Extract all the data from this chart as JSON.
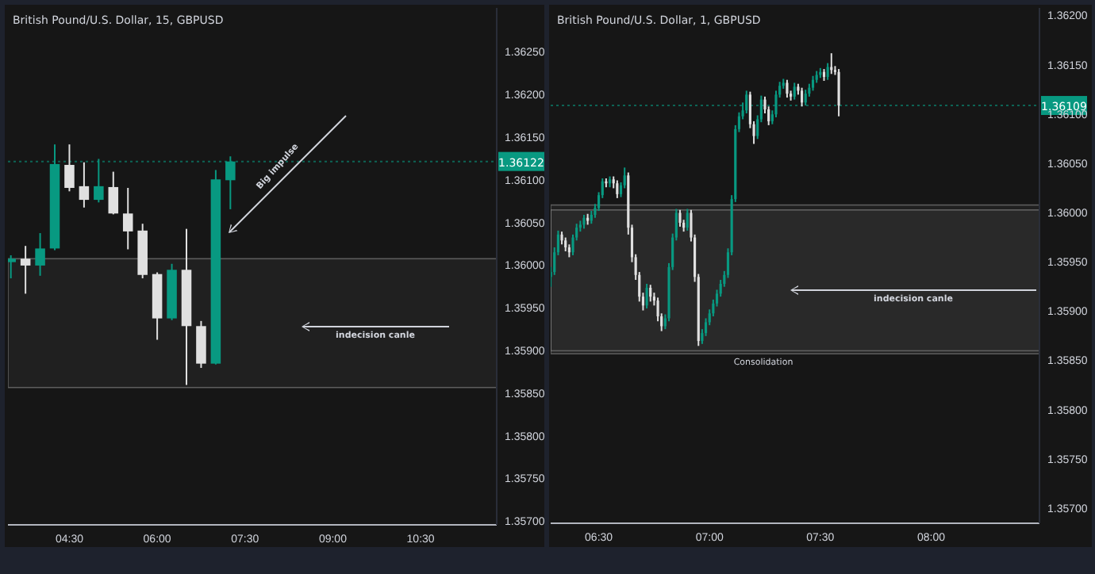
{
  "chart_data": [
    {
      "type": "candlestick",
      "title": "British Pound/U.S. Dollar, 15, GBPUSD",
      "x": [
        3.5,
        3.75,
        4.0,
        4.25,
        4.5,
        4.75,
        5.0,
        5.25,
        5.5,
        5.75,
        6.0,
        6.25,
        6.5,
        6.75,
        7.0,
        7.25
      ],
      "ohlc": [
        [
          1.36004,
          1.36012,
          1.35985,
          1.36008
        ],
        [
          1.36008,
          1.36023,
          1.35967,
          1.36
        ],
        [
          1.36,
          1.36038,
          1.35988,
          1.3602
        ],
        [
          1.3602,
          1.36142,
          1.36018,
          1.36119
        ],
        [
          1.36118,
          1.36142,
          1.36087,
          1.36091
        ],
        [
          1.36093,
          1.36121,
          1.36068,
          1.36077
        ],
        [
          1.36077,
          1.36125,
          1.36074,
          1.36093
        ],
        [
          1.36092,
          1.3611,
          1.3606,
          1.36061
        ],
        [
          1.36061,
          1.36091,
          1.36019,
          1.3604
        ],
        [
          1.36041,
          1.36049,
          1.35985,
          1.35989
        ],
        [
          1.3599,
          1.35992,
          1.35913,
          1.35938
        ],
        [
          1.35938,
          1.36002,
          1.35936,
          1.35995
        ],
        [
          1.35995,
          1.36043,
          1.3586,
          1.35929
        ],
        [
          1.35929,
          1.35935,
          1.3588,
          1.35885
        ],
        [
          1.35885,
          1.36112,
          1.35884,
          1.36101
        ],
        [
          1.361,
          1.36128,
          1.36066,
          1.36122
        ]
      ],
      "xlim": [
        3.45,
        11.8
      ],
      "xticks": [
        {
          "value": 4.5,
          "label": "04:30"
        },
        {
          "value": 6,
          "label": "06:00"
        },
        {
          "value": 7.5,
          "label": "07:30"
        },
        {
          "value": 9,
          "label": "09:00"
        },
        {
          "value": 10.5,
          "label": "10:30"
        }
      ],
      "ylim": [
        1.35696,
        1.36302
      ],
      "yticks": [
        {
          "value": 1.357,
          "label": "1.35700"
        },
        {
          "value": 1.3575,
          "label": "1.35750"
        },
        {
          "value": 1.358,
          "label": "1.35800"
        },
        {
          "value": 1.3585,
          "label": "1.35850"
        },
        {
          "value": 1.359,
          "label": "1.35900"
        },
        {
          "value": 1.3595,
          "label": "1.35950"
        },
        {
          "value": 1.36,
          "label": "1.36000"
        },
        {
          "value": 1.3605,
          "label": "1.36050"
        },
        {
          "value": 1.361,
          "label": "1.36100"
        },
        {
          "value": 1.3615,
          "label": "1.36150"
        },
        {
          "value": 1.362,
          "label": "1.36200"
        },
        {
          "value": 1.3625,
          "label": "1.36250"
        }
      ],
      "ref_lines": [
        {
          "axis": "y",
          "value": 1.36122,
          "label": "1.36122",
          "color": "#089981",
          "line_style": "dotted"
        }
      ],
      "bands": [
        {
          "axis": "y",
          "from": 1.35857,
          "to": 1.36008,
          "label": null,
          "color": "#9e9e9e"
        }
      ],
      "annotations": [
        "Big impulse",
        "indecision canle"
      ]
    },
    {
      "type": "candlestick",
      "title": "British Pound/U.S. Dollar, 1, GBPUSD",
      "x": [
        6.2833,
        6.3,
        6.3167,
        6.3333,
        6.35,
        6.3667,
        6.3833,
        6.4,
        6.4167,
        6.4333,
        6.45,
        6.4667,
        6.4833,
        6.5,
        6.5167,
        6.5333,
        6.55,
        6.5667,
        6.5833,
        6.6,
        6.6167,
        6.6333,
        6.65,
        6.6667,
        6.6833,
        6.7,
        6.7167,
        6.7333,
        6.75,
        6.7667,
        6.7833,
        6.8,
        6.8167,
        6.8333,
        6.85,
        6.8667,
        6.8833,
        6.9,
        6.9167,
        6.9333,
        6.95,
        6.9667,
        6.9833,
        7,
        7.0167,
        7.0333,
        7.05,
        7.0667,
        7.0833,
        7.1,
        7.1167,
        7.1333,
        7.15,
        7.1667,
        7.1833,
        7.2,
        7.2167,
        7.2333,
        7.25,
        7.2667,
        7.2833,
        7.3,
        7.3167,
        7.3333,
        7.35,
        7.3667,
        7.3833,
        7.4,
        7.4167,
        7.4333,
        7.45,
        7.4667,
        7.4833,
        7.5,
        7.5167,
        7.5333,
        7.55,
        7.5667,
        7.5833
      ],
      "ohlc": [
        [
          1.35935,
          1.35945,
          1.35925,
          1.3594
        ],
        [
          1.3594,
          1.35965,
          1.35937,
          1.3596
        ],
        [
          1.3596,
          1.35982,
          1.35957,
          1.35978
        ],
        [
          1.35978,
          1.35981,
          1.35968,
          1.35972
        ],
        [
          1.35972,
          1.35975,
          1.35961,
          1.35965
        ],
        [
          1.35965,
          1.35968,
          1.35955,
          1.3596
        ],
        [
          1.3596,
          1.35978,
          1.35957,
          1.35975
        ],
        [
          1.35975,
          1.35989,
          1.35972,
          1.35985
        ],
        [
          1.35985,
          1.35992,
          1.35981,
          1.35988
        ],
        [
          1.35988,
          1.35998,
          1.35984,
          1.35995
        ],
        [
          1.35995,
          1.35999,
          1.35988,
          1.35992
        ],
        [
          1.35992,
          1.36002,
          1.35989,
          1.35998
        ],
        [
          1.35998,
          1.36009,
          1.35995,
          1.36005
        ],
        [
          1.36005,
          1.36021,
          1.36002,
          1.36018
        ],
        [
          1.36018,
          1.36035,
          1.36015,
          1.36032
        ],
        [
          1.36032,
          1.36035,
          1.36026,
          1.3603
        ],
        [
          1.3603,
          1.36037,
          1.36026,
          1.36034
        ],
        [
          1.36034,
          1.36037,
          1.36025,
          1.3603
        ],
        [
          1.3603,
          1.36033,
          1.36015,
          1.36019
        ],
        [
          1.36019,
          1.36031,
          1.36016,
          1.36028
        ],
        [
          1.36028,
          1.36046,
          1.36025,
          1.36038
        ],
        [
          1.36038,
          1.36041,
          1.35978,
          1.35985
        ],
        [
          1.35985,
          1.35988,
          1.3595,
          1.35955
        ],
        [
          1.35955,
          1.35958,
          1.35932,
          1.35937
        ],
        [
          1.35937,
          1.3594,
          1.3591,
          1.35915
        ],
        [
          1.35915,
          1.35919,
          1.35901,
          1.35906
        ],
        [
          1.35906,
          1.35928,
          1.35903,
          1.35924
        ],
        [
          1.35924,
          1.35927,
          1.3591,
          1.35915
        ],
        [
          1.35915,
          1.35919,
          1.35906,
          1.35911
        ],
        [
          1.35911,
          1.35914,
          1.3589,
          1.35895
        ],
        [
          1.35895,
          1.35898,
          1.3588,
          1.35885
        ],
        [
          1.35885,
          1.35897,
          1.35882,
          1.35893
        ],
        [
          1.35893,
          1.35949,
          1.3589,
          1.35945
        ],
        [
          1.35945,
          1.35979,
          1.35942,
          1.35975
        ],
        [
          1.35975,
          1.36004,
          1.35972,
          1.36
        ],
        [
          1.36,
          1.36003,
          1.35986,
          1.3599
        ],
        [
          1.3599,
          1.35993,
          1.35981,
          1.35985
        ],
        [
          1.35985,
          1.36004,
          1.35982,
          1.36
        ],
        [
          1.36,
          1.36003,
          1.35971,
          1.35975
        ],
        [
          1.35975,
          1.35978,
          1.3593,
          1.35935
        ],
        [
          1.35935,
          1.35938,
          1.35865,
          1.3587
        ],
        [
          1.3587,
          1.35882,
          1.35867,
          1.35878
        ],
        [
          1.35878,
          1.35893,
          1.35875,
          1.35889
        ],
        [
          1.35889,
          1.35902,
          1.35886,
          1.35898
        ],
        [
          1.35898,
          1.35912,
          1.35895,
          1.35908
        ],
        [
          1.35908,
          1.35922,
          1.35905,
          1.35918
        ],
        [
          1.35918,
          1.35932,
          1.35915,
          1.35928
        ],
        [
          1.35928,
          1.35941,
          1.35925,
          1.35937
        ],
        [
          1.35937,
          1.35964,
          1.35934,
          1.3596
        ],
        [
          1.3596,
          1.36018,
          1.35957,
          1.36014
        ],
        [
          1.36014,
          1.36089,
          1.36011,
          1.36085
        ],
        [
          1.36085,
          1.36102,
          1.36082,
          1.36098
        ],
        [
          1.36098,
          1.36112,
          1.36095,
          1.36104
        ],
        [
          1.36104,
          1.36124,
          1.36101,
          1.3612
        ],
        [
          1.3612,
          1.36123,
          1.36086,
          1.3609
        ],
        [
          1.3609,
          1.36093,
          1.3607,
          1.36078
        ],
        [
          1.36078,
          1.36099,
          1.36075,
          1.36095
        ],
        [
          1.36095,
          1.36119,
          1.36092,
          1.36115
        ],
        [
          1.36115,
          1.36118,
          1.36101,
          1.36105
        ],
        [
          1.36105,
          1.36108,
          1.36089,
          1.36093
        ],
        [
          1.36093,
          1.36104,
          1.3609,
          1.361
        ],
        [
          1.361,
          1.36124,
          1.36097,
          1.3612
        ],
        [
          1.3612,
          1.36133,
          1.36117,
          1.36129
        ],
        [
          1.36129,
          1.36136,
          1.36126,
          1.36132
        ],
        [
          1.36132,
          1.36135,
          1.36117,
          1.36121
        ],
        [
          1.36121,
          1.36124,
          1.36114,
          1.36118
        ],
        [
          1.36118,
          1.36132,
          1.36115,
          1.36128
        ],
        [
          1.36128,
          1.36131,
          1.3612,
          1.36124
        ],
        [
          1.36124,
          1.36127,
          1.36108,
          1.36112
        ],
        [
          1.36112,
          1.36125,
          1.36109,
          1.36121
        ],
        [
          1.36121,
          1.36131,
          1.36118,
          1.36127
        ],
        [
          1.36127,
          1.36139,
          1.36124,
          1.36135
        ],
        [
          1.36135,
          1.36144,
          1.36132,
          1.3614
        ],
        [
          1.3614,
          1.36147,
          1.36137,
          1.36143
        ],
        [
          1.36143,
          1.36146,
          1.36134,
          1.36138
        ],
        [
          1.36138,
          1.36152,
          1.36135,
          1.36148
        ],
        [
          1.36148,
          1.36162,
          1.36141,
          1.36145
        ],
        [
          1.36145,
          1.36149,
          1.3614,
          1.36143
        ],
        [
          1.36143,
          1.36146,
          1.36098,
          1.36109
        ]
      ],
      "xlim": [
        6.283,
        8.489
      ],
      "xticks": [
        {
          "value": 6.5,
          "label": "06:30"
        },
        {
          "value": 7,
          "label": "07:00"
        },
        {
          "value": 7.5,
          "label": "07:30"
        },
        {
          "value": 8,
          "label": "08:00"
        }
      ],
      "ylim": [
        1.35685,
        1.36208
      ],
      "yticks": [
        {
          "value": 1.357,
          "label": "1.35700"
        },
        {
          "value": 1.3575,
          "label": "1.35750"
        },
        {
          "value": 1.358,
          "label": "1.35800"
        },
        {
          "value": 1.3585,
          "label": "1.35850"
        },
        {
          "value": 1.359,
          "label": "1.35900"
        },
        {
          "value": 1.3595,
          "label": "1.35950"
        },
        {
          "value": 1.36,
          "label": "1.36000"
        },
        {
          "value": 1.3605,
          "label": "1.36050"
        },
        {
          "value": 1.361,
          "label": "1.36100"
        },
        {
          "value": 1.3615,
          "label": "1.36150"
        },
        {
          "value": 1.362,
          "label": "1.36200"
        }
      ],
      "ref_lines": [
        {
          "axis": "y",
          "value": 1.36109,
          "label": "1.36109",
          "color": "#089981",
          "line_style": "dotted"
        }
      ],
      "bands": [
        {
          "axis": "y",
          "from": 1.3586,
          "to": 1.36008,
          "label": null,
          "color": "#9e9e9e"
        },
        {
          "axis": "y",
          "from": 1.35857,
          "to": 1.36003,
          "label": "Consolidation",
          "color": "#9e9e9e"
        }
      ],
      "annotations": [
        "indecision canle"
      ]
    }
  ]
}
